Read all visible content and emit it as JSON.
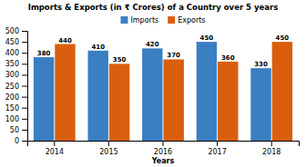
{
  "chart_data": {
    "type": "bar",
    "title": "Imports & Exports (in ₹ Crores) of a Country over 5 years",
    "xlabel": "Years",
    "categories": [
      "2014",
      "2015",
      "2016",
      "2017",
      "2018"
    ],
    "series": [
      {
        "name": "Imports",
        "color": "#3a7fc1",
        "values": [
          380,
          410,
          420,
          450,
          330
        ]
      },
      {
        "name": "Exports",
        "color": "#d95f0e",
        "values": [
          440,
          350,
          370,
          360,
          450
        ]
      }
    ],
    "ylim": [
      0,
      500
    ],
    "yticks": [
      0,
      50,
      100,
      150,
      200,
      250,
      300,
      350,
      400,
      450,
      500
    ],
    "grid": false,
    "legend": "top",
    "data_labels": true
  }
}
